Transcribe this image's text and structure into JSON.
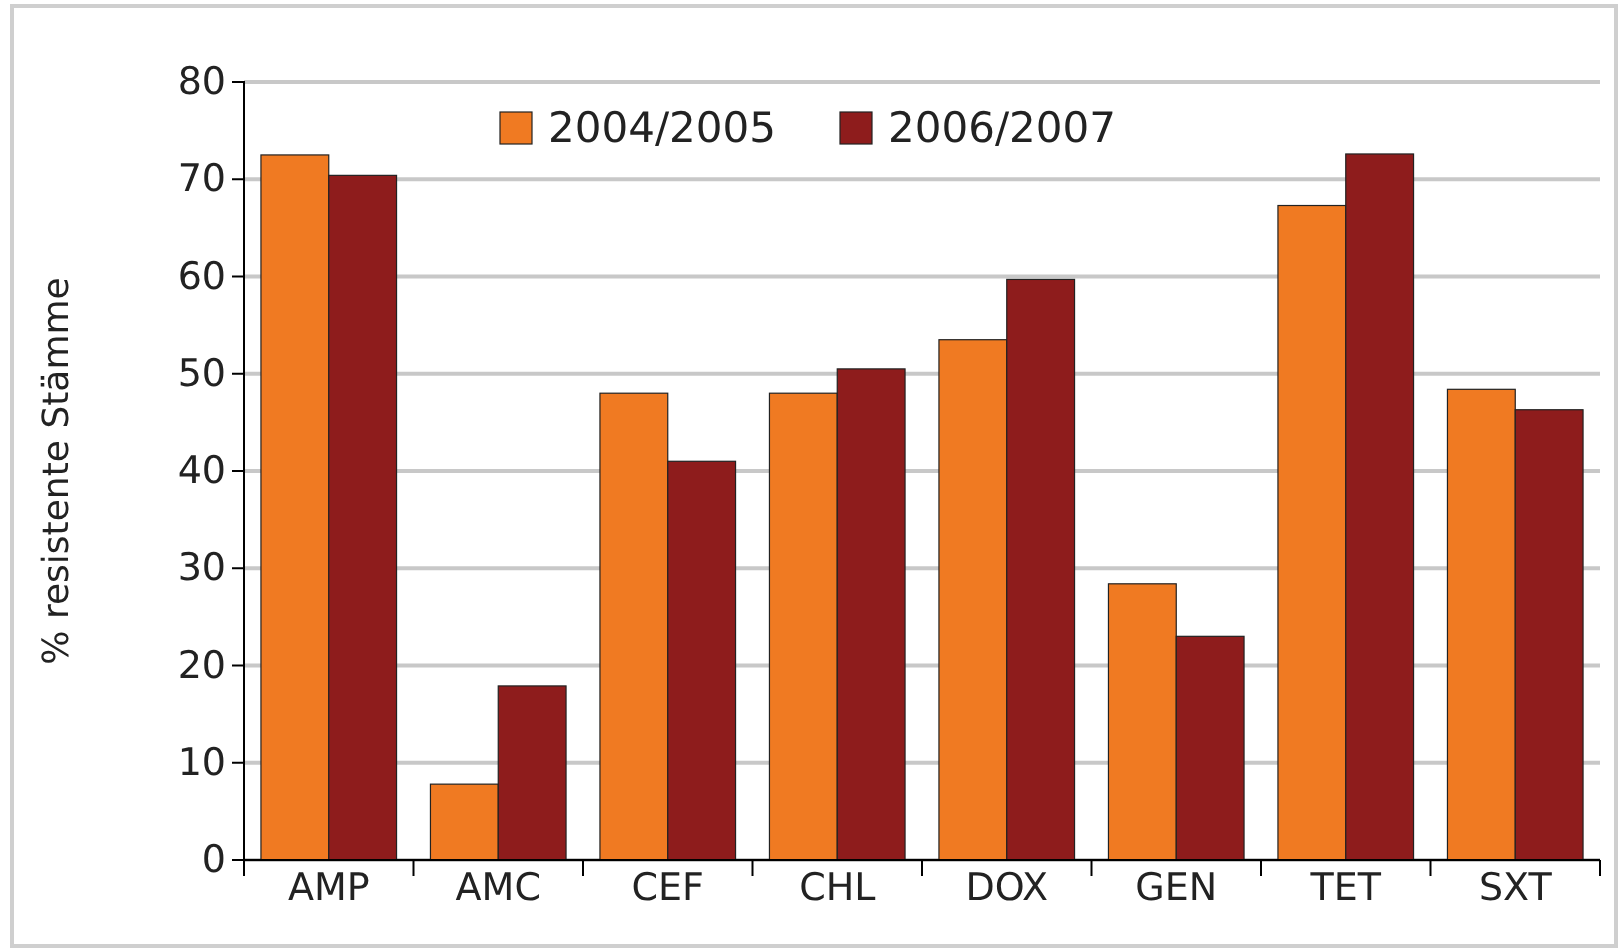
{
  "chart_data": {
    "type": "bar",
    "ylabel": "% resistente Stämme",
    "categories": [
      "AMP",
      "AMC",
      "CEF",
      "CHL",
      "DOX",
      "GEN",
      "TET",
      "SXT"
    ],
    "series": [
      {
        "name": "2004/2005",
        "color": "#f07a22",
        "values": [
          72.5,
          7.8,
          48,
          48,
          53.5,
          28.4,
          67.3,
          48.4
        ]
      },
      {
        "name": "2006/2007",
        "color": "#8e1c1c",
        "values": [
          70.4,
          17.9,
          41,
          50.5,
          59.7,
          23,
          72.6,
          46.3
        ]
      }
    ],
    "ylim": [
      0,
      80
    ],
    "yticks": [
      0,
      10,
      20,
      30,
      40,
      50,
      60,
      70,
      80
    ],
    "grid": "y",
    "legend": "top"
  }
}
